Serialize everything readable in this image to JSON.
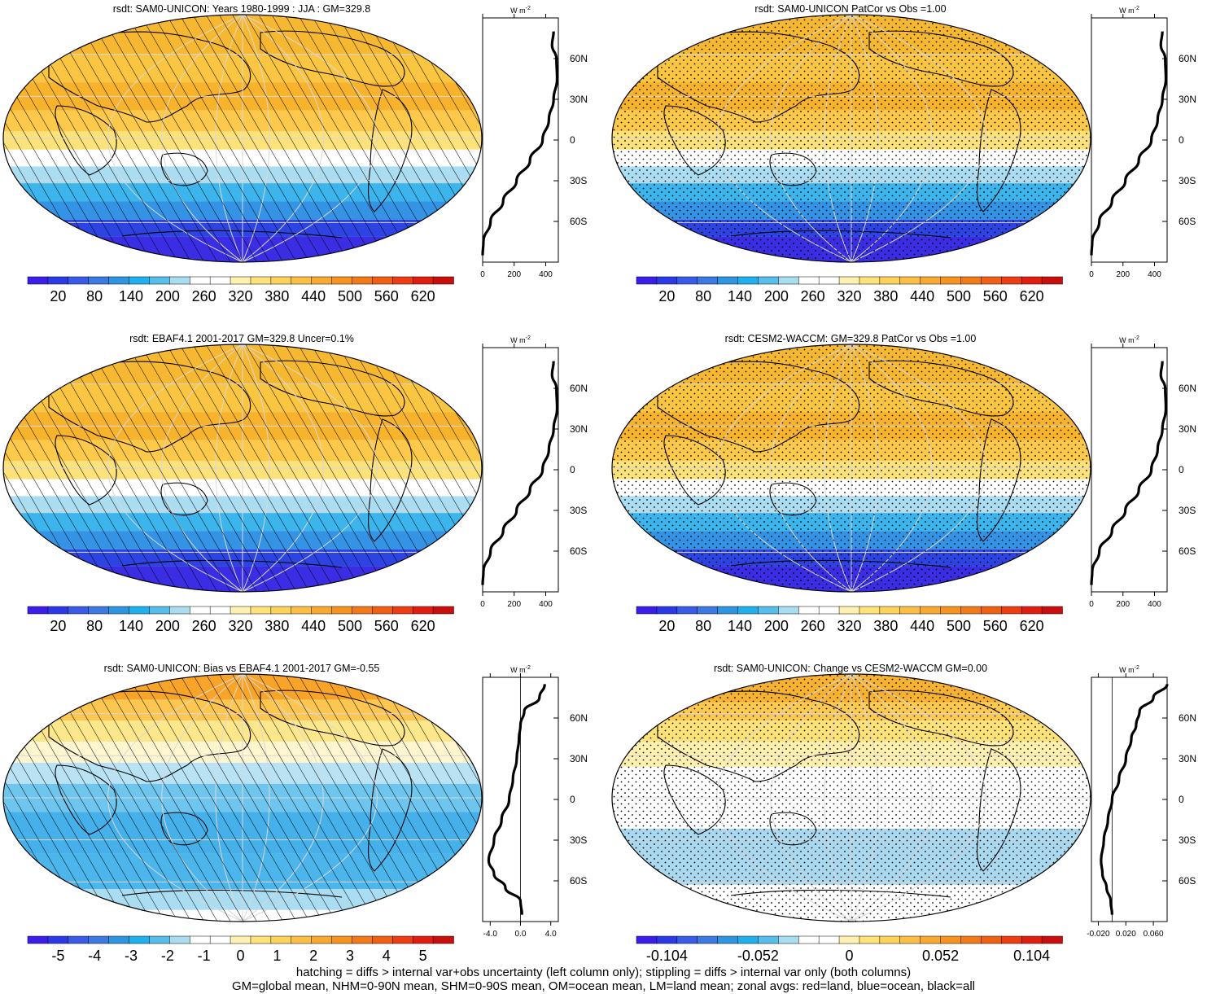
{
  "colors": {
    "abs_palette": [
      "#3b1ee8",
      "#2a3ae6",
      "#3a5be8",
      "#3c79e0",
      "#2f95e0",
      "#20b0ee",
      "#56bee8",
      "#a8dcf0",
      "#ffffff",
      "#ffffff",
      "#fff2b0",
      "#ffe27a",
      "#fdd25a",
      "#fbbf45",
      "#f8aa30",
      "#f59520",
      "#f27a18",
      "#ef5f14",
      "#ec3e12",
      "#e01e10",
      "#c80f0c"
    ],
    "bias_palette": [
      "#3b1ee8",
      "#2a3ae6",
      "#3a5be8",
      "#3c79e0",
      "#2f95e0",
      "#20b0ee",
      "#56bee8",
      "#a8dcf0",
      "#ffffff",
      "#ffffff",
      "#fff2b0",
      "#ffe27a",
      "#fdd25a",
      "#fbbf45",
      "#f8aa30",
      "#f59520",
      "#f27a18",
      "#ef5f14",
      "#ec3e12",
      "#e01e10",
      "#c80f0c"
    ],
    "change_palette": [
      "#3b1ee8",
      "#2a3ae6",
      "#3a5be8",
      "#3c79e0",
      "#2f95e0",
      "#20b0ee",
      "#56bee8",
      "#a8dcf0",
      "#ffffff",
      "#ffffff",
      "#fff2b0",
      "#ffe27a",
      "#fdd25a",
      "#fbbf45",
      "#f8aa30",
      "#f59520",
      "#f27a18",
      "#ef5f14",
      "#ec3e12",
      "#e01e10",
      "#c80f0c"
    ]
  },
  "lat_labels": [
    "60N",
    "30N",
    "0",
    "30S",
    "60S"
  ],
  "unit_label": "W m",
  "unit_exp": "-2",
  "panels": [
    {
      "id": "model",
      "title": "rsdt: SAM0-UNICON: Years 1980-1999 : JJA : GM=329.8",
      "colorbar_labels": [
        "20",
        "80",
        "140",
        "200",
        "260",
        "320",
        "380",
        "440",
        "500",
        "560",
        "620"
      ],
      "zonal_xticks": [
        "0",
        "200",
        "400"
      ],
      "pattern": "hatch",
      "field": "abs"
    },
    {
      "id": "model_pattern",
      "title": "rsdt: SAM0-UNICON PatCor vs Obs =1.00",
      "colorbar_labels": [
        "20",
        "80",
        "140",
        "200",
        "260",
        "320",
        "380",
        "440",
        "500",
        "560",
        "620"
      ],
      "zonal_xticks": [
        "0",
        "200",
        "400"
      ],
      "pattern": "stipple",
      "field": "abs"
    },
    {
      "id": "obs",
      "title": "rsdt: EBAF4.1 2001-2017 GM=329.8 Uncer=0.1%",
      "colorbar_labels": [
        "20",
        "80",
        "140",
        "200",
        "260",
        "320",
        "380",
        "440",
        "500",
        "560",
        "620"
      ],
      "zonal_xticks": [
        "0",
        "200",
        "400"
      ],
      "pattern": "hatch",
      "field": "abs"
    },
    {
      "id": "control",
      "title": "rsdt: CESM2-WACCM: GM=329.8 PatCor vs Obs =1.00",
      "colorbar_labels": [
        "20",
        "80",
        "140",
        "200",
        "260",
        "320",
        "380",
        "440",
        "500",
        "560",
        "620"
      ],
      "zonal_xticks": [
        "0",
        "200",
        "400"
      ],
      "pattern": "stipple",
      "field": "abs"
    },
    {
      "id": "bias",
      "title": "rsdt: SAM0-UNICON: Bias vs EBAF4.1 2001-2017 GM=-0.55",
      "colorbar_labels": [
        "-5",
        "-4",
        "-3",
        "-2",
        "-1",
        "0",
        "1",
        "2",
        "3",
        "4",
        "5"
      ],
      "zonal_xticks": [
        "-4.0",
        "0.0",
        "4.0"
      ],
      "pattern": "hatch",
      "field": "bias"
    },
    {
      "id": "change",
      "title": "rsdt: SAM0-UNICON: Change vs CESM2-WACCM GM=0.00",
      "colorbar_labels": [
        "-0.104",
        "-0.052",
        "0",
        "0.052",
        "0.104"
      ],
      "zonal_xticks": [
        "-0.020",
        "0.020",
        "0.060"
      ],
      "pattern": "stipple",
      "field": "change"
    }
  ],
  "footer": {
    "line1": "hatching = diffs > internal var+obs uncertainty (left column only); stippling = diffs > internal var only (both columns)",
    "line2": "GM=global mean, NHM=0-90N mean, SHM=0-90S mean, OM=ocean mean, LM=land mean; zonal avgs: red=land, blue=ocean, black=all"
  },
  "chart_data": [
    {
      "type": "line",
      "title": "rsdt: SAM0-UNICON: Years 1980-1999 : JJA : GM=329.8",
      "xlabel": "W m-2",
      "ylabel": "",
      "lat": [
        80,
        70,
        60,
        45,
        30,
        15,
        0,
        -15,
        -30,
        -45,
        -60,
        -75,
        -85
      ],
      "series": [
        {
          "values": [
            450,
            440,
            468,
            472,
            450,
            420,
            380,
            300,
            215,
            130,
            50,
            5,
            0
          ]
        }
      ],
      "xlim": [
        0,
        480
      ]
    },
    {
      "type": "line",
      "title": "rsdt: SAM0-UNICON PatCor vs Obs =1.00",
      "xlabel": "W m-2",
      "ylabel": "",
      "lat": [
        80,
        70,
        60,
        45,
        30,
        15,
        0,
        -15,
        -30,
        -45,
        -60,
        -75,
        -85
      ],
      "series": [
        {
          "values": [
            450,
            440,
            468,
            472,
            450,
            420,
            380,
            300,
            215,
            130,
            50,
            5,
            0
          ]
        }
      ],
      "xlim": [
        0,
        480
      ]
    },
    {
      "type": "line",
      "title": "rsdt: EBAF4.1 2001-2017 GM=329.8 Uncer=0.1%",
      "xlabel": "W m-2",
      "ylabel": "",
      "lat": [
        80,
        70,
        60,
        45,
        30,
        15,
        0,
        -15,
        -30,
        -45,
        -60,
        -75,
        -85
      ],
      "series": [
        {
          "values": [
            450,
            440,
            468,
            472,
            450,
            420,
            380,
            300,
            215,
            130,
            50,
            5,
            0
          ]
        }
      ],
      "xlim": [
        0,
        480
      ]
    },
    {
      "type": "line",
      "title": "rsdt: CESM2-WACCM: GM=329.8 PatCor vs Obs =1.00",
      "xlabel": "W m-2",
      "ylabel": "",
      "lat": [
        80,
        70,
        60,
        45,
        30,
        15,
        0,
        -15,
        -30,
        -45,
        -60,
        -75,
        -85
      ],
      "series": [
        {
          "values": [
            450,
            440,
            468,
            472,
            450,
            420,
            380,
            300,
            215,
            130,
            50,
            5,
            0
          ]
        }
      ],
      "xlim": [
        0,
        480
      ]
    },
    {
      "type": "line",
      "title": "rsdt: SAM0-UNICON: Bias vs EBAF4.1 2001-2017 GM=-0.55",
      "xlabel": "W m-2",
      "ylabel": "",
      "lat": [
        85,
        75,
        65,
        55,
        45,
        30,
        15,
        0,
        -15,
        -30,
        -45,
        -55,
        -65,
        -75,
        -85
      ],
      "series": [
        {
          "values": [
            3.2,
            2.5,
            0.5,
            0.0,
            -0.2,
            -0.5,
            -1.0,
            -1.5,
            -2.5,
            -3.5,
            -4.2,
            -3.5,
            -2.0,
            0.0,
            0.2
          ]
        }
      ],
      "xlim": [
        -5,
        5
      ]
    },
    {
      "type": "line",
      "title": "rsdt: SAM0-UNICON: Change vs CESM2-WACCM GM=0.00",
      "xlabel": "W m-2",
      "ylabel": "",
      "lat": [
        85,
        75,
        65,
        55,
        45,
        30,
        15,
        0,
        -15,
        -30,
        -45,
        -55,
        -65,
        -75,
        -85
      ],
      "series": [
        {
          "values": [
            0.08,
            0.06,
            0.04,
            0.035,
            0.028,
            0.02,
            0.01,
            0.0,
            -0.006,
            -0.012,
            -0.016,
            -0.014,
            -0.008,
            -0.002,
            0.0
          ]
        }
      ],
      "xlim": [
        -0.03,
        0.08
      ]
    }
  ]
}
